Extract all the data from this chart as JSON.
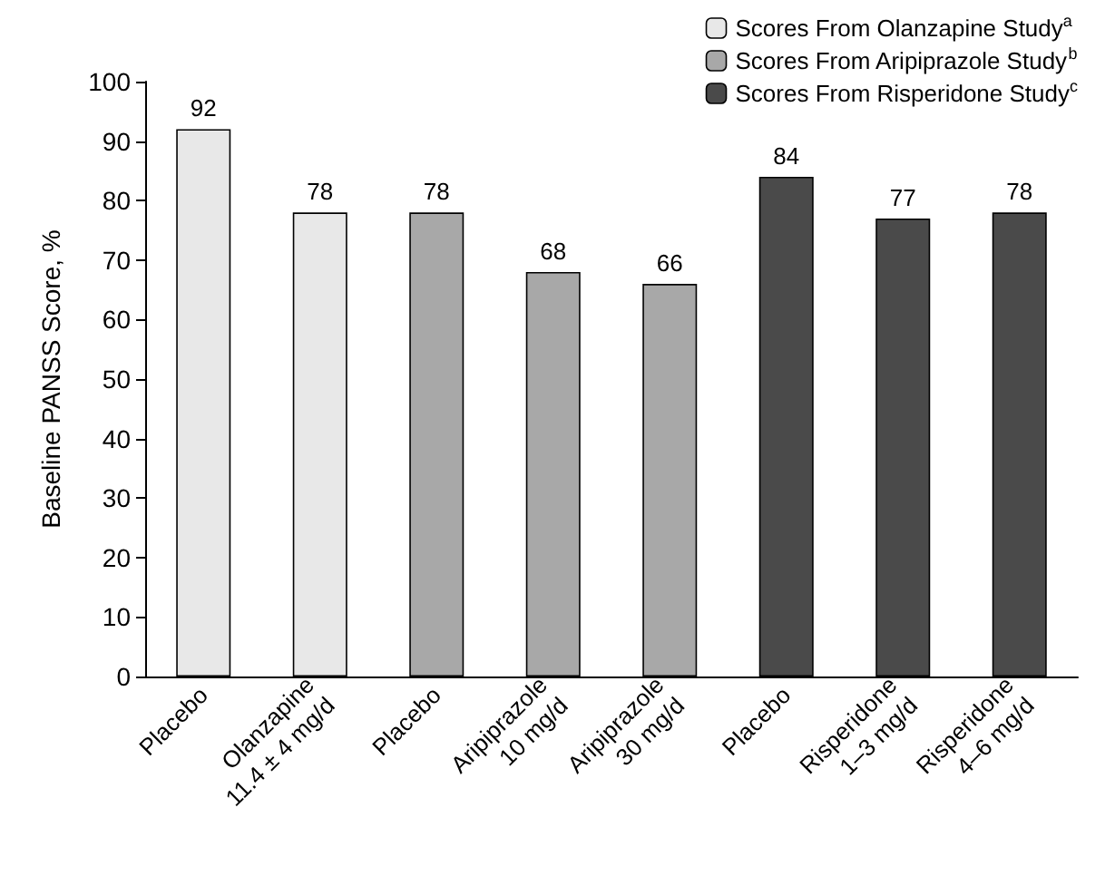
{
  "chart_data": {
    "type": "bar",
    "ylabel": "Baseline PANSS Score, %",
    "categories": [
      "Placebo",
      "Olanzapine\n11.4 ± 4 mg/d",
      "Placebo",
      "Aripiprazole\n10 mg/d",
      "Aripiprazole\n30 mg/d",
      "Placebo",
      "Risperidone\n1–3 mg/d",
      "Risperidone\n4–6 mg/d"
    ],
    "series": [
      {
        "name": "Scores From Olanzapine Study$^{a}$",
        "color": "#e8e8e8",
        "values": [
          92,
          78,
          null,
          null,
          null,
          null,
          null,
          null
        ]
      },
      {
        "name": "Scores From Aripiprazole Study$^{b}$",
        "color": "#a8a8a8",
        "values": [
          null,
          null,
          78,
          68,
          66,
          null,
          null,
          null
        ]
      },
      {
        "name": "Scores From Risperidone Study$^{c}$",
        "color": "#4a4a4a",
        "values": [
          null,
          null,
          null,
          null,
          null,
          84,
          77,
          78
        ]
      }
    ],
    "stacked": true,
    "data_labels": true,
    "ylim": [
      0,
      100
    ],
    "yticks": [
      0,
      10,
      20,
      30,
      40,
      50,
      60,
      70,
      80,
      90,
      100
    ],
    "grid": false,
    "legend": "top right"
  }
}
